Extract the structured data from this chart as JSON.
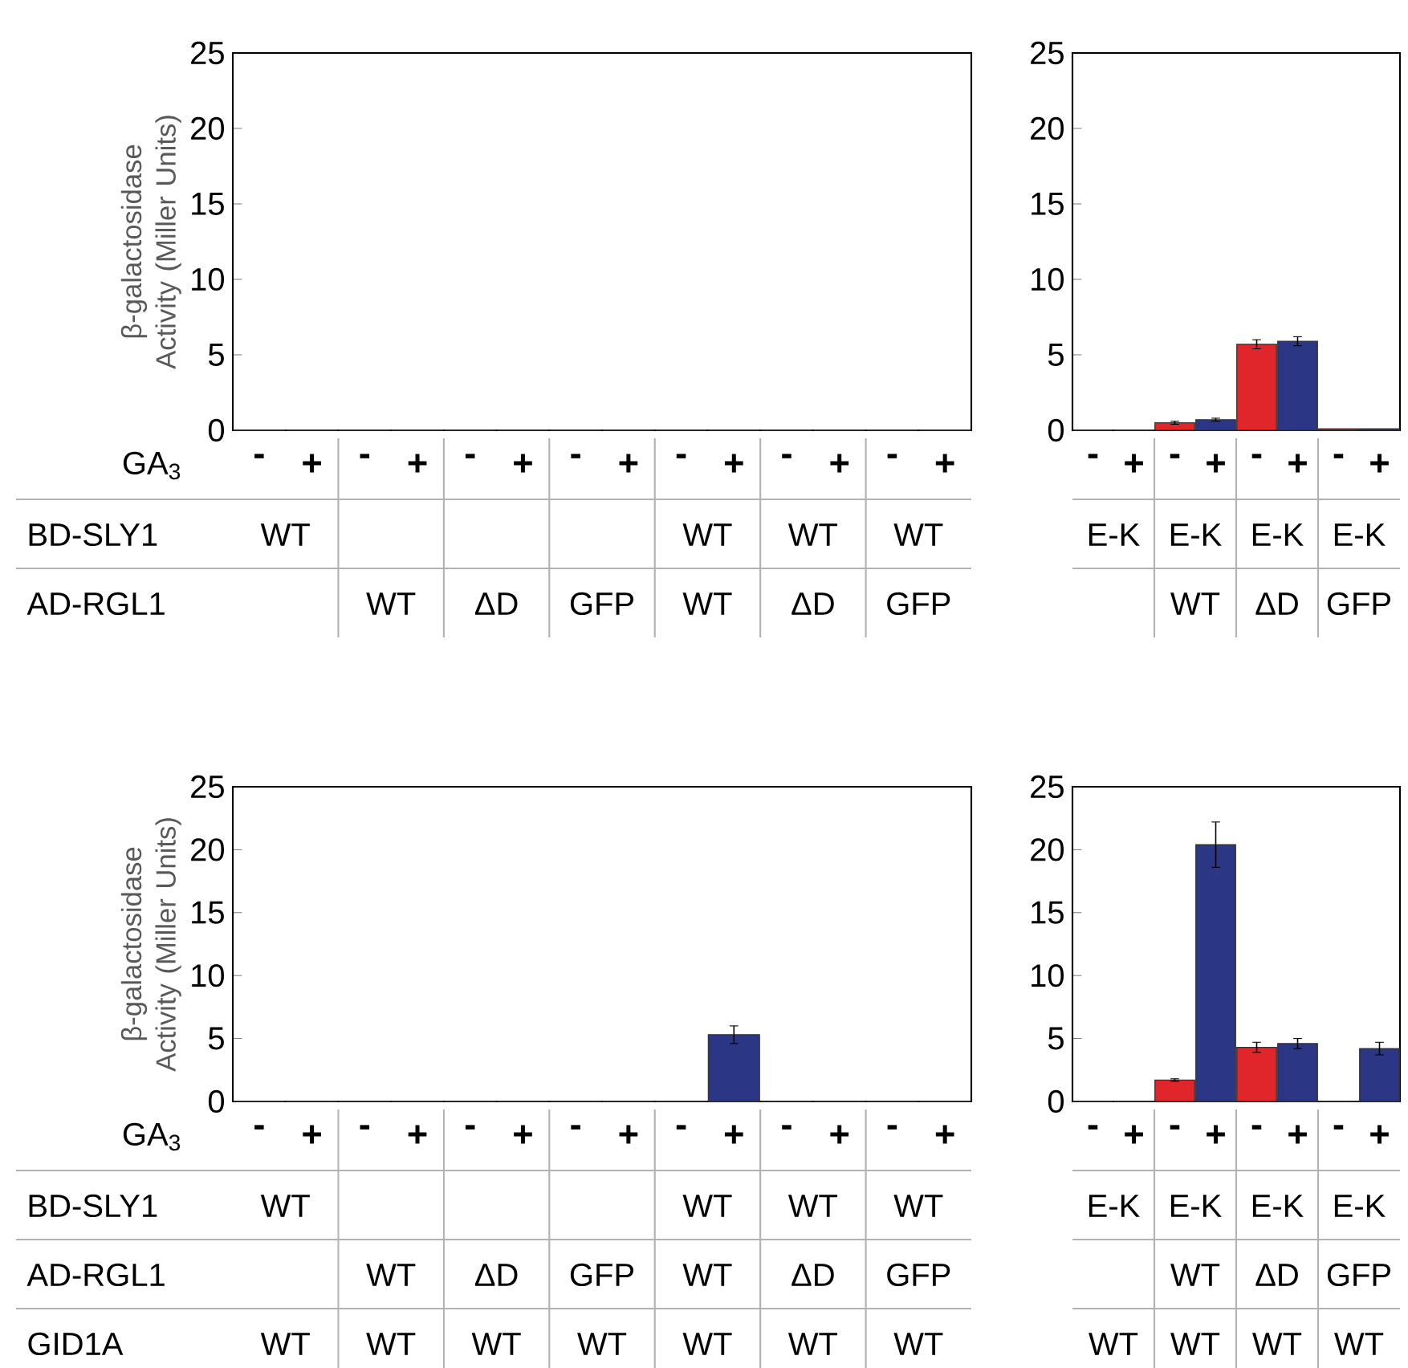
{
  "chart_data": [
    {
      "type": "bar",
      "ylabel": "β-galactosidase Activity (Miller Units)",
      "xlabel": "GA$_{3}$",
      "categories": [
        "-",
        "+",
        "-",
        "+",
        "-",
        "+",
        "-",
        "+",
        "-",
        "+",
        "-",
        "+",
        "-",
        "+"
      ],
      "values": [
        0,
        0,
        0,
        0,
        0,
        0,
        0,
        0,
        0,
        0,
        0,
        0,
        0,
        0
      ],
      "colors": [
        "#e0262b",
        "#2b3784",
        "#e0262b",
        "#2b3784",
        "#e0262b",
        "#2b3784",
        "#e0262b",
        "#2b3784",
        "#e0262b",
        "#2b3784",
        "#e0262b",
        "#2b3784",
        "#e0262b",
        "#2b3784"
      ],
      "ylim": [
        0,
        25
      ],
      "yticks": [
        0,
        5,
        10,
        15,
        20,
        25
      ],
      "annotations": [
        "BD-SLY1",
        "WT",
        null,
        null,
        null,
        "WT",
        "WT",
        "WT",
        "AD-RGL1",
        null,
        "WT",
        "ΔD",
        "GFP",
        "WT",
        "ΔD",
        "GFP"
      ]
    },
    {
      "type": "bar",
      "categories": [
        "-",
        "+",
        "-",
        "+",
        "-",
        "+",
        "-",
        "+"
      ],
      "values": [
        0,
        0,
        0.5,
        0.7,
        5.7,
        5.9,
        0.1,
        0.1
      ],
      "errors": [
        null,
        null,
        0.1,
        0.1,
        0.3,
        0.3,
        null,
        null
      ],
      "colors": [
        "#e0262b",
        "#2b3784",
        "#e0262b",
        "#2b3784",
        "#e0262b",
        "#2b3784",
        "#e0262b",
        "#2b3784"
      ],
      "ylim": [
        0,
        25
      ],
      "yticks": [
        0,
        5,
        10,
        15,
        20,
        25
      ],
      "annotations": [
        "E-K",
        "E-K",
        "E-K",
        "E-K",
        null,
        "WT",
        "ΔD",
        "GFP"
      ]
    },
    {
      "type": "bar",
      "ylabel": "β-galactosidase Activity (Miller Units)",
      "xlabel": "GA$_{3}$",
      "categories": [
        "-",
        "+",
        "-",
        "+",
        "-",
        "+",
        "-",
        "+",
        "-",
        "+",
        "-",
        "+",
        "-",
        "+"
      ],
      "values": [
        0,
        0,
        0,
        0,
        0,
        0,
        0,
        0,
        0,
        5.3,
        0,
        0,
        0,
        0
      ],
      "errors": [
        null,
        null,
        null,
        null,
        null,
        null,
        null,
        null,
        null,
        0.7,
        null,
        null,
        null,
        null
      ],
      "colors": [
        "#e0262b",
        "#2b3784",
        "#e0262b",
        "#2b3784",
        "#e0262b",
        "#2b3784",
        "#e0262b",
        "#2b3784",
        "#e0262b",
        "#2b3784",
        "#e0262b",
        "#2b3784",
        "#e0262b",
        "#2b3784"
      ],
      "ylim": [
        0,
        25
      ],
      "yticks": [
        0,
        5,
        10,
        15,
        20,
        25
      ],
      "annotations": [
        "BD-SLY1",
        "WT",
        null,
        null,
        null,
        "WT",
        "WT",
        "WT",
        "AD-RGL1",
        null,
        "WT",
        "ΔD",
        "GFP",
        "WT",
        "ΔD",
        "GFP",
        "GID1A",
        "WT",
        "WT",
        "WT",
        "WT",
        "WT",
        "WT",
        "WT"
      ]
    },
    {
      "type": "bar",
      "categories": [
        "-",
        "+",
        "-",
        "+",
        "-",
        "+",
        "-",
        "+"
      ],
      "values": [
        0,
        0,
        1.7,
        20.4,
        4.3,
        4.6,
        0,
        4.2
      ],
      "errors": [
        null,
        null,
        0.1,
        1.8,
        0.4,
        0.4,
        null,
        0.5
      ],
      "colors": [
        "#e0262b",
        "#2b3784",
        "#e0262b",
        "#2b3784",
        "#e0262b",
        "#2b3784",
        "#e0262b",
        "#2b3784"
      ],
      "ylim": [
        0,
        25
      ],
      "yticks": [
        0,
        5,
        10,
        15,
        20,
        25
      ],
      "annotations": [
        "E-K",
        "E-K",
        "E-K",
        "E-K",
        null,
        "WT",
        "ΔD",
        "GFP",
        "WT",
        "WT",
        "WT",
        "WT"
      ]
    }
  ]
}
